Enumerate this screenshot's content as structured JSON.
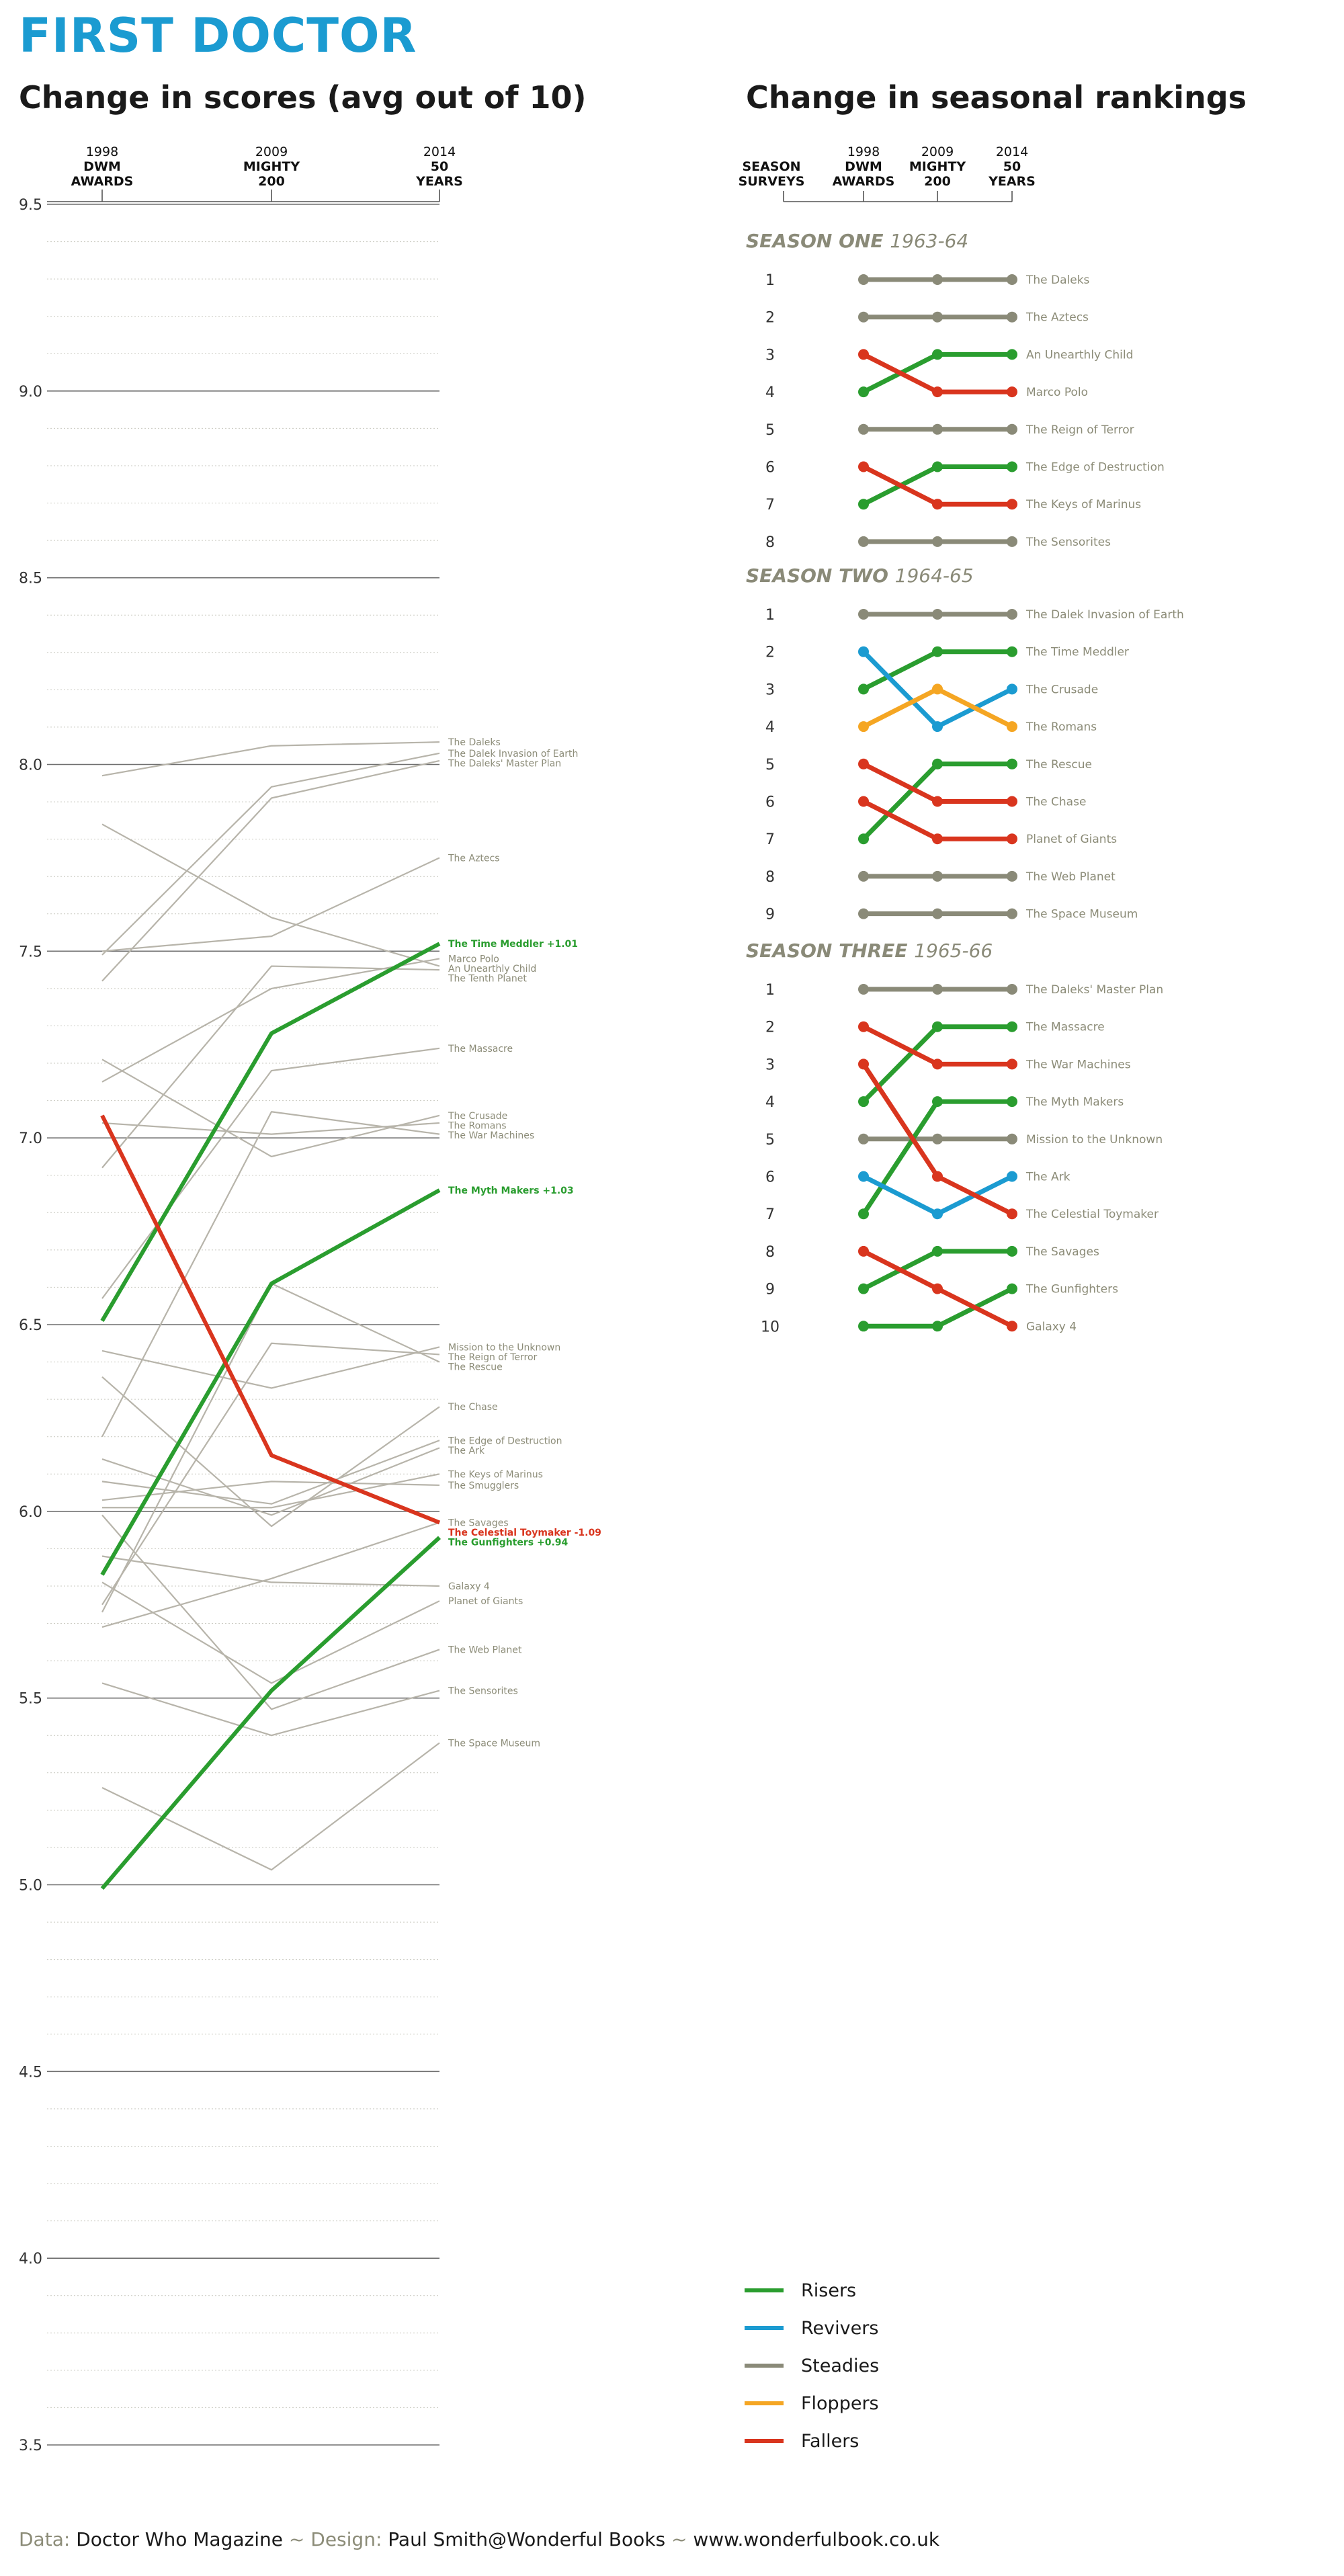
{
  "title": "FIRST DOCTOR",
  "scores_title": "Change in scores (avg out of 10)",
  "rankings_title": "Change in seasonal rankings",
  "colors": {
    "risers": "#2a9d2f",
    "revivers": "#1b9bd1",
    "steadies": "#8a8a78",
    "floppers": "#f5a623",
    "fallers": "#d9351e",
    "background_lines": "#b7b4aa",
    "label_gray": "#8c8c78",
    "title_blue": "#1b9bd1"
  },
  "legend": [
    {
      "key": "risers",
      "label": "Risers"
    },
    {
      "key": "revivers",
      "label": "Revivers"
    },
    {
      "key": "steadies",
      "label": "Steadies"
    },
    {
      "key": "floppers",
      "label": "Floppers"
    },
    {
      "key": "fallers",
      "label": "Fallers"
    }
  ],
  "footer": {
    "data_label": "Data:",
    "data_value": "Doctor Who Magazine",
    "sep": "~",
    "design_label": "Design:",
    "design_value": "Paul Smith@Wonderful Books",
    "url": "www.wonderfulbook.co.uk"
  },
  "chart_data": [
    {
      "type": "line",
      "title": "Change in scores (avg out of 10)",
      "x": [
        {
          "lines": [
            "1998",
            "DWM",
            "AWARDS"
          ]
        },
        {
          "lines": [
            "2009",
            "MIGHTY",
            "200"
          ]
        },
        {
          "lines": [
            "2014",
            "50",
            "YEARS"
          ]
        }
      ],
      "ylim": [
        3.5,
        9.5
      ],
      "yticks": [
        "3.5",
        "4.0",
        "4.5",
        "5.0",
        "5.5",
        "6.0",
        "6.5",
        "7.0",
        "7.5",
        "8.0",
        "8.5",
        "9.0",
        "9.5"
      ],
      "grid": true,
      "series": [
        {
          "name": "The Daleks",
          "values": [
            7.97,
            8.05,
            8.06
          ],
          "group": "background"
        },
        {
          "name": "The Dalek Invasion of Earth",
          "values": [
            7.49,
            7.94,
            8.03
          ],
          "group": "background"
        },
        {
          "name": "The Daleks' Master Plan",
          "values": [
            7.42,
            7.91,
            8.01
          ],
          "group": "background"
        },
        {
          "name": "The Aztecs",
          "values": [
            7.5,
            7.54,
            7.75
          ],
          "group": "background"
        },
        {
          "name": "An Unearthly Child",
          "values": [
            7.84,
            7.59,
            7.46
          ],
          "group": "background"
        },
        {
          "name": "Marco Polo",
          "values": [
            7.15,
            7.4,
            7.48
          ],
          "group": "background"
        },
        {
          "name": "The Tenth Planet",
          "values": [
            6.92,
            7.46,
            7.45
          ],
          "group": "background"
        },
        {
          "name": "The Massacre",
          "values": [
            6.57,
            7.18,
            7.24
          ],
          "group": "background"
        },
        {
          "name": "The Crusade",
          "values": [
            7.21,
            6.95,
            7.06
          ],
          "group": "background"
        },
        {
          "name": "The Romans",
          "values": [
            7.04,
            7.01,
            7.04
          ],
          "group": "background"
        },
        {
          "name": "The War Machines",
          "values": [
            6.2,
            7.07,
            7.01
          ],
          "group": "background"
        },
        {
          "name": "Mission to the Unknown",
          "values": [
            6.43,
            6.33,
            6.44
          ],
          "group": "background"
        },
        {
          "name": "The Reign of Terror",
          "values": [
            5.75,
            6.45,
            6.42
          ],
          "group": "background"
        },
        {
          "name": "The Rescue",
          "values": [
            5.73,
            6.61,
            6.4
          ],
          "group": "background"
        },
        {
          "name": "The Chase",
          "values": [
            6.36,
            5.96,
            6.28
          ],
          "group": "background"
        },
        {
          "name": "The Edge of Destruction",
          "values": [
            6.08,
            6.02,
            6.19
          ],
          "group": "background"
        },
        {
          "name": "The Ark",
          "values": [
            6.14,
            5.99,
            6.17
          ],
          "group": "background"
        },
        {
          "name": "The Keys of Marinus",
          "values": [
            6.01,
            6.01,
            6.1
          ],
          "group": "background"
        },
        {
          "name": "The Smugglers",
          "values": [
            6.03,
            6.08,
            6.07
          ],
          "group": "background"
        },
        {
          "name": "The Savages",
          "values": [
            5.69,
            5.82,
            5.97
          ],
          "group": "background"
        },
        {
          "name": "Galaxy 4",
          "values": [
            5.88,
            5.81,
            5.8
          ],
          "group": "background"
        },
        {
          "name": "Planet of Giants",
          "values": [
            5.81,
            5.54,
            5.76
          ],
          "group": "background"
        },
        {
          "name": "The Web Planet",
          "values": [
            5.99,
            5.47,
            5.63
          ],
          "group": "background"
        },
        {
          "name": "The Sensorites",
          "values": [
            5.54,
            5.4,
            5.52
          ],
          "group": "background"
        },
        {
          "name": "The Space Museum",
          "values": [
            5.26,
            5.04,
            5.38
          ],
          "group": "background"
        },
        {
          "name": "The Time Meddler",
          "values": [
            6.51,
            7.28,
            7.52
          ],
          "group": "risers",
          "label": "The Time Meddler +1.01"
        },
        {
          "name": "The Myth Makers",
          "values": [
            5.83,
            6.61,
            6.86
          ],
          "group": "risers",
          "label": "The Myth Makers +1.03"
        },
        {
          "name": "The Celestial Toymaker",
          "values": [
            7.06,
            6.15,
            5.97
          ],
          "group": "fallers",
          "label": "The Celestial Toymaker -1.09"
        },
        {
          "name": "The Gunfighters",
          "values": [
            4.99,
            5.52,
            5.93
          ],
          "group": "risers",
          "label": "The Gunfighters +0.94"
        }
      ]
    },
    {
      "type": "line",
      "title": "Change in seasonal rankings",
      "x": [
        {
          "lines": [
            "SEASON",
            "SURVEYS"
          ]
        },
        {
          "lines": [
            "1998",
            "DWM",
            "AWARDS"
          ]
        },
        {
          "lines": [
            "2009",
            "MIGHTY",
            "200"
          ]
        },
        {
          "lines": [
            "2014",
            "50",
            "YEARS"
          ]
        }
      ],
      "seasons": [
        {
          "name": "SEASON ONE",
          "years": "1963-64",
          "ranks": [
            "1",
            "2",
            "3",
            "4",
            "5",
            "6",
            "7",
            "8"
          ],
          "stories": [
            {
              "name": "The Daleks",
              "ranks": [
                1,
                1,
                1
              ],
              "category": "steadies"
            },
            {
              "name": "The Aztecs",
              "ranks": [
                2,
                2,
                2
              ],
              "category": "steadies"
            },
            {
              "name": "An Unearthly Child",
              "ranks": [
                4,
                3,
                3
              ],
              "category": "risers"
            },
            {
              "name": "Marco Polo",
              "ranks": [
                3,
                4,
                4
              ],
              "category": "fallers"
            },
            {
              "name": "The Reign of Terror",
              "ranks": [
                5,
                5,
                5
              ],
              "category": "steadies"
            },
            {
              "name": "The Edge of Destruction",
              "ranks": [
                7,
                6,
                6
              ],
              "category": "risers"
            },
            {
              "name": "The Keys of Marinus",
              "ranks": [
                6,
                7,
                7
              ],
              "category": "fallers"
            },
            {
              "name": "The Sensorites",
              "ranks": [
                8,
                8,
                8
              ],
              "category": "steadies"
            }
          ]
        },
        {
          "name": "SEASON TWO",
          "years": "1964-65",
          "ranks": [
            "1",
            "2",
            "3",
            "4",
            "5",
            "6",
            "7",
            "8",
            "9"
          ],
          "stories": [
            {
              "name": "The Dalek Invasion of Earth",
              "ranks": [
                1,
                1,
                1
              ],
              "category": "steadies"
            },
            {
              "name": "The Time Meddler",
              "ranks": [
                3,
                2,
                2
              ],
              "category": "risers"
            },
            {
              "name": "The Crusade",
              "ranks": [
                2,
                4,
                3
              ],
              "category": "revivers"
            },
            {
              "name": "The Romans",
              "ranks": [
                4,
                3,
                4
              ],
              "category": "floppers"
            },
            {
              "name": "The Rescue",
              "ranks": [
                7,
                5,
                5
              ],
              "category": "risers"
            },
            {
              "name": "The Chase",
              "ranks": [
                5,
                6,
                6
              ],
              "category": "fallers"
            },
            {
              "name": "Planet of Giants",
              "ranks": [
                6,
                7,
                7
              ],
              "category": "fallers"
            },
            {
              "name": "The Web Planet",
              "ranks": [
                8,
                8,
                8
              ],
              "category": "steadies"
            },
            {
              "name": "The Space Museum",
              "ranks": [
                9,
                9,
                9
              ],
              "category": "steadies"
            }
          ]
        },
        {
          "name": "SEASON THREE",
          "years": "1965-66",
          "ranks": [
            "1",
            "2",
            "3",
            "4",
            "5",
            "6",
            "7",
            "8",
            "9",
            "10"
          ],
          "stories": [
            {
              "name": "The Daleks' Master Plan",
              "ranks": [
                1,
                1,
                1
              ],
              "category": "steadies"
            },
            {
              "name": "The Massacre",
              "ranks": [
                4,
                2,
                2
              ],
              "category": "risers"
            },
            {
              "name": "The War Machines",
              "ranks": [
                2,
                3,
                3
              ],
              "category": "fallers"
            },
            {
              "name": "The Myth Makers",
              "ranks": [
                7,
                4,
                4
              ],
              "category": "risers"
            },
            {
              "name": "Mission to the Unknown",
              "ranks": [
                5,
                5,
                5
              ],
              "category": "steadies"
            },
            {
              "name": "The Ark",
              "ranks": [
                6,
                7,
                6
              ],
              "category": "revivers"
            },
            {
              "name": "The Celestial Toymaker",
              "ranks": [
                3,
                6,
                7
              ],
              "category": "fallers"
            },
            {
              "name": "The Savages",
              "ranks": [
                9,
                8,
                8
              ],
              "category": "risers"
            },
            {
              "name": "The Gunfighters",
              "ranks": [
                10,
                10,
                9
              ],
              "category": "risers"
            },
            {
              "name": "Galaxy 4",
              "ranks": [
                8,
                9,
                10
              ],
              "category": "fallers"
            }
          ]
        }
      ]
    }
  ]
}
